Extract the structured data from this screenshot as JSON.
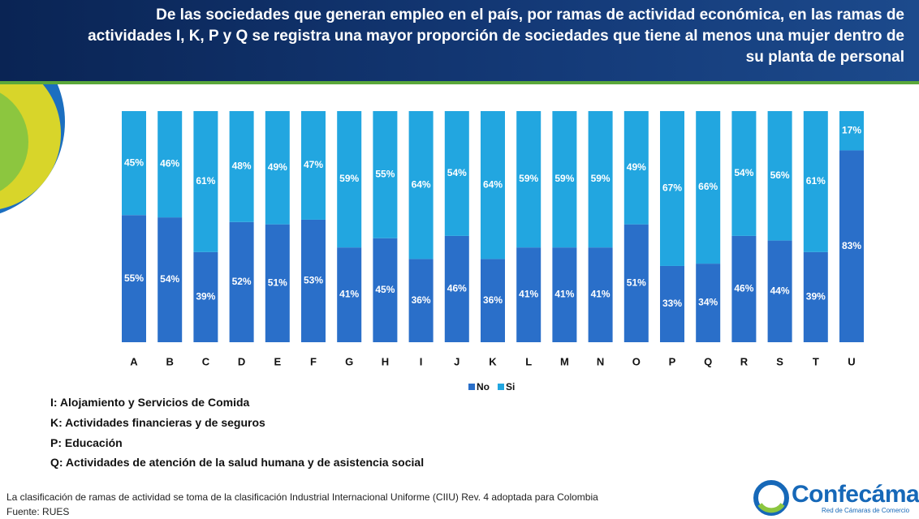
{
  "chart_data": {
    "type": "bar",
    "stacked": true,
    "title": "De las sociedades que generan empleo en el país, por ramas de actividad económica, en las ramas de actividades I, K, P y Q se registra una mayor proporción de sociedades que tiene al menos una mujer dentro de su planta de personal",
    "categories": [
      "A",
      "B",
      "C",
      "D",
      "E",
      "F",
      "G",
      "H",
      "I",
      "J",
      "K",
      "L",
      "M",
      "N",
      "O",
      "P",
      "Q",
      "R",
      "S",
      "T",
      "U"
    ],
    "series": [
      {
        "name": "No",
        "color": "#2a6fc9",
        "values": [
          55,
          54,
          39,
          52,
          51,
          53,
          41,
          45,
          36,
          46,
          36,
          41,
          41,
          41,
          51,
          33,
          34,
          46,
          44,
          39,
          83
        ],
        "value_labels": [
          "55%",
          "54%",
          "39%",
          "52%",
          "51%",
          "53%",
          "41%",
          "45%",
          "36%",
          "46%",
          "36%",
          "41%",
          "41%",
          "41%",
          "51%",
          "33%",
          "34%",
          "46%",
          "44%",
          "39%",
          "83%"
        ]
      },
      {
        "name": "Si",
        "color": "#22a6e0",
        "values": [
          45,
          46,
          61,
          48,
          49,
          47,
          59,
          55,
          64,
          54,
          64,
          59,
          59,
          59,
          49,
          67,
          66,
          54,
          56,
          61,
          17
        ],
        "value_labels": [
          "45%",
          "46%",
          "61%",
          "48%",
          "49%",
          "47%",
          "59%",
          "55%",
          "64%",
          "54%",
          "64%",
          "59%",
          "59%",
          "59%",
          "49%",
          "67%",
          "66%",
          "54%",
          "56%",
          "61%",
          "17%"
        ]
      }
    ],
    "legend": "bottom"
  },
  "notes": [
    "I: Alojamiento y Servicios de Comida",
    "K: Actividades financieras y de seguros",
    "P: Educación",
    "Q: Actividades de atención de la salud humana y de asistencia social"
  ],
  "footnote": "La clasificación de ramas de actividad se toma de la clasificación Industrial Internacional Uniforme (CIIU) Rev. 4 adoptada para Colombia",
  "source": "Fuente: RUES",
  "logo": {
    "name": "Confecámaras",
    "tagline": "Red de Cámaras de Comercio"
  }
}
